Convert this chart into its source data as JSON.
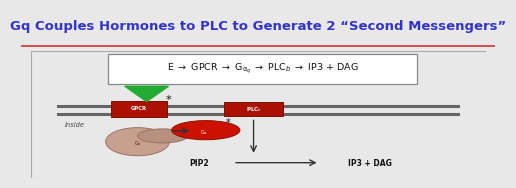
{
  "title": "Gq Couples Hormones to PLC to Generate 2 “Second Messengers”",
  "title_color": "#3333cc",
  "title_fontsize": 9.5,
  "bg_color": "#e8e8e8",
  "white": "#ffffff",
  "gpcr_color": "#aa1100",
  "plc_color": "#aa1100",
  "galpha_color": "#cc1100",
  "green_tri": "#22aa33",
  "membrane_color": "#666666",
  "text_dark": "#111111",
  "arrow_color": "#333333",
  "inside_label": "Inside",
  "pip2_label": "PIP2",
  "product_label": "IP3 + DAG",
  "separator_color": "#cc3333"
}
